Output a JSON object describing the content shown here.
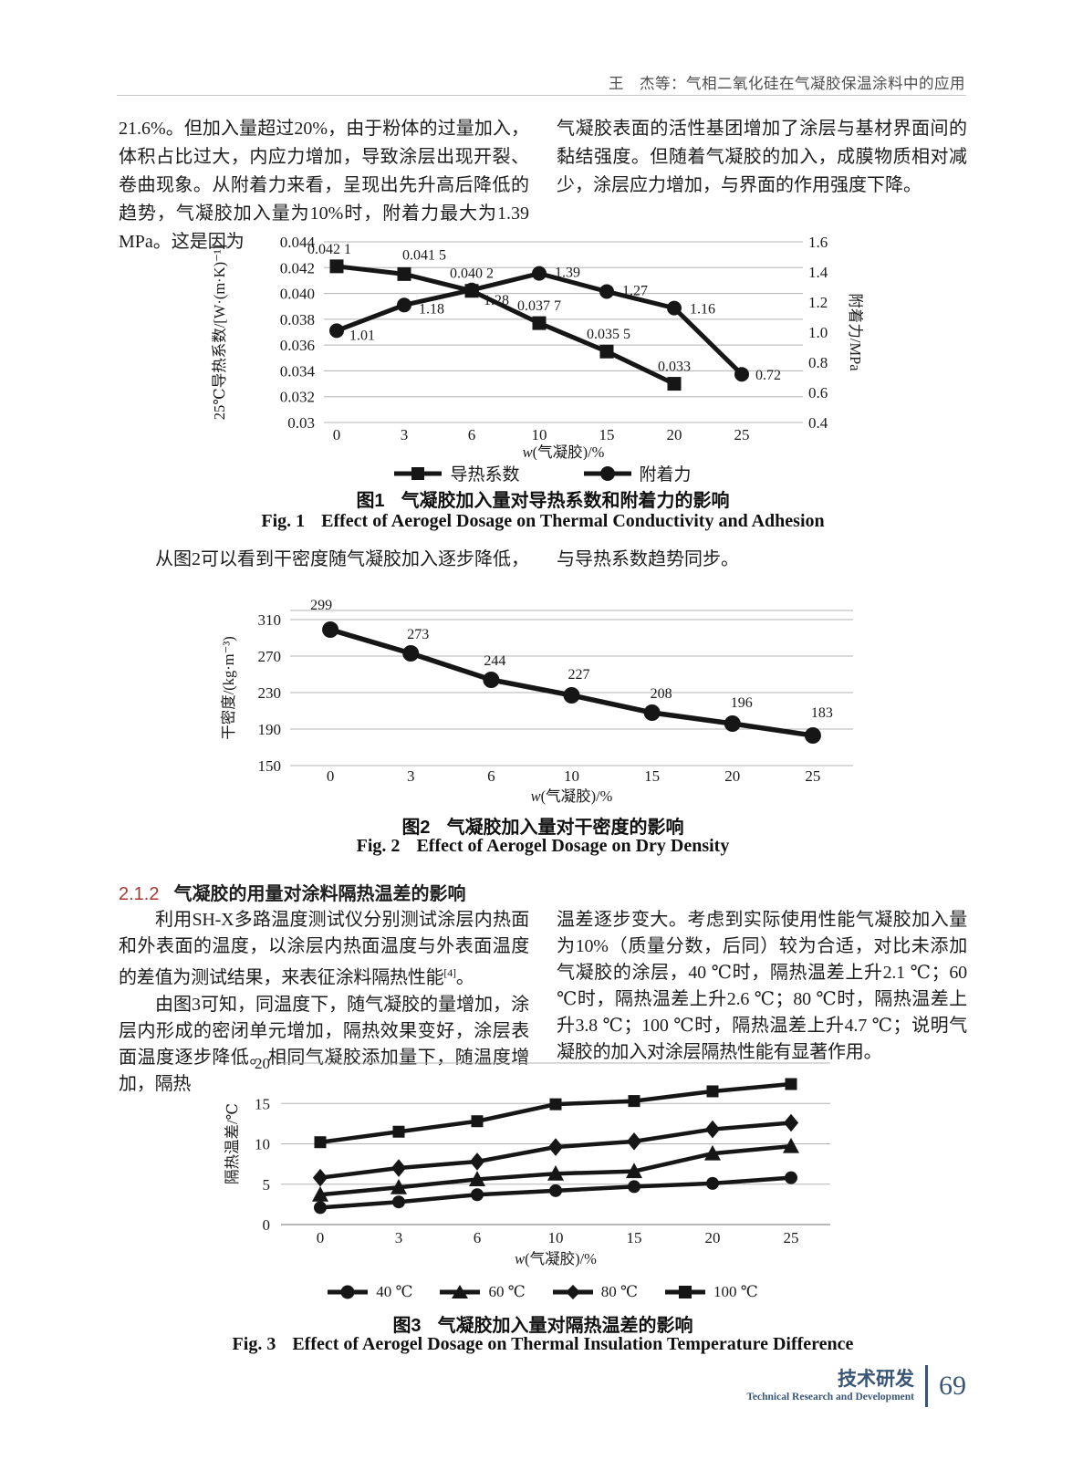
{
  "page": {
    "header": "王　杰等：气相二氧化硅在气凝胶保温涂料中的应用",
    "footer": {
      "zh": "技术研发",
      "en": "Technical Research and Development",
      "page_number": "69"
    }
  },
  "text": {
    "col1_p1": "21.6%。但加入量超过20%，由于粉体的过量加入，体积占比过大，内应力增加，导致涂层出现开裂、卷曲现象。从附着力来看，呈现出先升高后降低的趋势，气凝胶加入量为10%时，附着力最大为1.39 MPa。这是因为",
    "col2_p1": "气凝胶表面的活性基团增加了涂层与基材界面间的黏结强度。但随着气凝胶的加入，成膜物质相对减少，涂层应力增加，与界面的作用强度下降。",
    "col1_p2": "从图2可以看到干密度随气凝胶加入逐步降低，",
    "col2_p2": "与导热系数趋势同步。",
    "section": {
      "number": "2.1.2",
      "title": "气凝胶的用量对涂料隔热温差的影响"
    },
    "col1_p3a": "利用SH-X多路温度测试仪分别测试涂层内热面和外表面的温度，以涂层内热面温度与外表面温度的差值为测试结果，来表征涂料隔热性能",
    "col1_p3_ref": "[4]",
    "col1_p3b": "。",
    "col1_p4": "由图3可知，同温度下，随气凝胶的量增加，涂层内形成的密闭单元增加，隔热效果变好，涂层表面温度逐步降低。相同气凝胶添加量下，随温度增加，隔热",
    "col2_p3": "温差逐步变大。考虑到实际使用性能气凝胶加入量为10%（质量分数，后同）较为合适，对比未添加气凝胶的涂层，40 ℃时，隔热温差上升2.1 ℃；60 ℃时，隔热温差上升2.6 ℃；80 ℃时，隔热温差上升3.8 ℃；100 ℃时，隔热温差上升4.7 ℃；说明气凝胶的加入对涂层隔热性能有显著作用。"
  },
  "figures": {
    "fig1": {
      "no_zh": "图1",
      "zh": "气凝胶加入量对导热系数和附着力的影响",
      "no_en": "Fig. 1",
      "en": "Effect of Aerogel Dosage on Thermal Conductivity and Adhesion"
    },
    "fig2": {
      "no_zh": "图2",
      "zh": "气凝胶加入量对干密度的影响",
      "no_en": "Fig. 2",
      "en": "Effect of Aerogel Dosage on Dry Density"
    },
    "fig3": {
      "no_zh": "图3",
      "zh": "气凝胶加入量对隔热温差的影响",
      "no_en": "Fig. 3",
      "en": "Effect of Aerogel Dosage on Thermal Insulation Temperature Difference"
    }
  },
  "chart_data": [
    {
      "id": "fig1",
      "type": "line",
      "categories": [
        "0",
        "3",
        "6",
        "10",
        "15",
        "20",
        "25"
      ],
      "xlabel": "w(气凝胶)/%",
      "y_left": {
        "label": "25℃导热系数/[W·(m·K)⁻¹]",
        "min": 0.03,
        "max": 0.044,
        "tick_values": [
          0.044,
          0.042,
          0.04,
          0.038,
          0.036,
          0.034,
          0.032,
          0.03
        ],
        "tick_labels": [
          "0.044",
          "0.042",
          "0.040",
          "0.038",
          "0.036",
          "0.034",
          "0.032",
          "0.03"
        ]
      },
      "y_right": {
        "label": "附着力/MPa",
        "min": 0.4,
        "max": 1.6,
        "tick_values": [
          1.6,
          1.4,
          1.2,
          1.0,
          0.8,
          0.6,
          0.4
        ],
        "tick_labels": [
          "1.6",
          "1.4",
          "1.2",
          "1.0",
          "0.8",
          "0.6",
          "0.4"
        ]
      },
      "series": [
        {
          "name": "导热系数",
          "marker": "square",
          "axis": "left",
          "values": [
            0.0421,
            0.0415,
            0.0402,
            0.0377,
            0.0355,
            0.033,
            null
          ],
          "point_labels": [
            "0.042 1",
            "0.041 5",
            "0.040 2",
            "0.037 7",
            "0.035 5",
            "0.033",
            ""
          ]
        },
        {
          "name": "附着力",
          "marker": "circle",
          "axis": "right",
          "values": [
            1.01,
            1.18,
            1.28,
            1.39,
            1.27,
            1.16,
            0.72
          ],
          "point_labels": [
            "1.01",
            "1.18",
            "1.28",
            "1.39",
            "1.27",
            "1.16",
            "0.72"
          ]
        }
      ],
      "legend": [
        "导热系数",
        "附着力"
      ]
    },
    {
      "id": "fig2",
      "type": "line",
      "categories": [
        "0",
        "3",
        "6",
        "10",
        "15",
        "20",
        "25"
      ],
      "xlabel": "w(气凝胶)/%",
      "y_left": {
        "label": "干密度/(kg·m⁻³)",
        "min": 150,
        "max": 320,
        "top_border": true,
        "tick_values": [
          310,
          270,
          230,
          190,
          150
        ],
        "tick_labels": [
          "310",
          "270",
          "230",
          "190",
          "150"
        ]
      },
      "series": [
        {
          "name": "干密度",
          "marker": "circle",
          "axis": "left",
          "values": [
            299,
            273,
            244,
            227,
            208,
            196,
            183
          ],
          "point_labels": [
            "299",
            "273",
            "244",
            "227",
            "208",
            "196",
            "183"
          ]
        }
      ],
      "legend": []
    },
    {
      "id": "fig3",
      "type": "line",
      "categories": [
        "0",
        "3",
        "6",
        "10",
        "15",
        "20",
        "25"
      ],
      "xlabel": "w(气凝胶)/%",
      "y_left": {
        "label": "隔热温差/℃",
        "min": 0,
        "max": 20,
        "tick_values": [
          20,
          15,
          10,
          5,
          0
        ],
        "tick_labels": [
          "20",
          "15",
          "10",
          "5",
          "0"
        ]
      },
      "series": [
        {
          "name": "40 ℃",
          "marker": "circle",
          "axis": "left",
          "values": [
            2.1,
            2.8,
            3.7,
            4.2,
            4.7,
            5.1,
            5.8
          ]
        },
        {
          "name": "60 ℃",
          "marker": "triangle",
          "axis": "left",
          "values": [
            3.7,
            4.6,
            5.6,
            6.3,
            6.6,
            8.8,
            9.7
          ]
        },
        {
          "name": "80 ℃",
          "marker": "diamond",
          "axis": "left",
          "values": [
            5.8,
            7.0,
            7.8,
            9.6,
            10.3,
            11.8,
            12.6
          ]
        },
        {
          "name": "100 ℃",
          "marker": "square",
          "axis": "left",
          "values": [
            10.2,
            11.5,
            12.8,
            14.9,
            15.3,
            16.5,
            17.4
          ]
        }
      ],
      "legend": [
        "40 ℃",
        "60 ℃",
        "80 ℃",
        "100 ℃"
      ]
    }
  ]
}
